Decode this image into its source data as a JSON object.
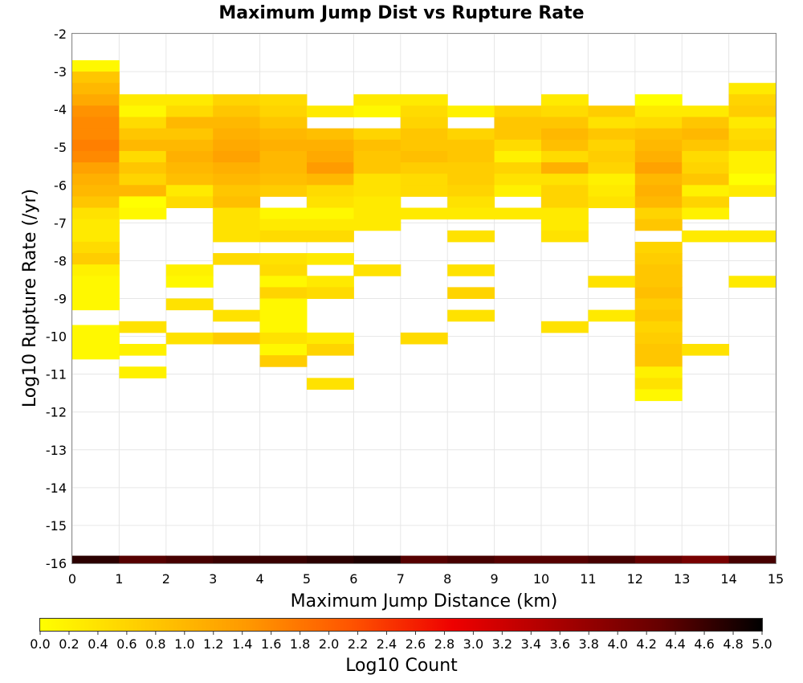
{
  "chart_data": {
    "type": "heatmap",
    "title": "Maximum Jump Dist vs Rupture Rate",
    "xlabel": "Maximum Jump Distance (km)",
    "ylabel": "Log10 Rupture Rate (/yr)",
    "xlim": [
      0,
      15
    ],
    "ylim": [
      -16,
      -2
    ],
    "x_ticks": [
      "0",
      "1",
      "2",
      "3",
      "4",
      "5",
      "6",
      "7",
      "8",
      "9",
      "10",
      "11",
      "12",
      "13",
      "14",
      "15"
    ],
    "y_ticks": [
      "-2",
      "-3",
      "-4",
      "-5",
      "-6",
      "-7",
      "-8",
      "-9",
      "-10",
      "-11",
      "-12",
      "-13",
      "-14",
      "-15",
      "-16"
    ],
    "grid": true,
    "bin_width_x": 1,
    "bin_height_y": 0.3,
    "colorbar": {
      "label": "Log10 Count",
      "min": 0,
      "max": 5,
      "ticks": [
        "0.0",
        "0.2",
        "0.4",
        "0.6",
        "0.8",
        "1.0",
        "1.2",
        "1.4",
        "1.6",
        "1.8",
        "2.0",
        "2.2",
        "2.4",
        "2.6",
        "2.8",
        "3.0",
        "3.2",
        "3.4",
        "3.6",
        "3.8",
        "4.0",
        "4.2",
        "4.4",
        "4.6",
        "4.8",
        "5.0"
      ],
      "colors": [
        "#ffff00",
        "#ffcc00",
        "#ff9900",
        "#ff5500",
        "#ee0000",
        "#aa0000",
        "#660000",
        "#000000"
      ]
    },
    "cells": [
      [
        0,
        -2.85,
        0.1
      ],
      [
        0,
        -3.15,
        0.8
      ],
      [
        0,
        -3.45,
        1.0
      ],
      [
        0,
        -3.75,
        1.2
      ],
      [
        0,
        -4.05,
        1.5
      ],
      [
        0,
        -4.35,
        1.6
      ],
      [
        0,
        -4.65,
        1.6
      ],
      [
        0,
        -4.95,
        1.7
      ],
      [
        0,
        -5.25,
        1.6
      ],
      [
        0,
        -5.55,
        1.3
      ],
      [
        0,
        -5.85,
        1.1
      ],
      [
        0,
        -6.15,
        1.0
      ],
      [
        0,
        -6.45,
        0.8
      ],
      [
        0,
        -6.75,
        0.4
      ],
      [
        0,
        -7.05,
        0.3
      ],
      [
        0,
        -7.35,
        0.3
      ],
      [
        0,
        -7.65,
        0.5
      ],
      [
        0,
        -7.95,
        0.7
      ],
      [
        0,
        -8.25,
        0.2
      ],
      [
        0,
        -8.55,
        0.1
      ],
      [
        0,
        -8.85,
        0.1
      ],
      [
        0,
        -9.15,
        0.1
      ],
      [
        0,
        -9.85,
        0.1
      ],
      [
        0,
        -10.15,
        0.1
      ],
      [
        0,
        -10.45,
        0.1
      ],
      [
        1,
        -3.75,
        0.3
      ],
      [
        1,
        -4.05,
        0.1
      ],
      [
        1,
        -4.35,
        0.5
      ],
      [
        1,
        -4.65,
        0.8
      ],
      [
        1,
        -4.95,
        1.0
      ],
      [
        1,
        -5.25,
        0.5
      ],
      [
        1,
        -5.55,
        0.8
      ],
      [
        1,
        -5.85,
        0.6
      ],
      [
        1,
        -6.15,
        1.0
      ],
      [
        1,
        -6.45,
        0.0
      ],
      [
        1,
        -6.75,
        0.1
      ],
      [
        1,
        -9.75,
        0.4
      ],
      [
        1,
        -10.35,
        0.2
      ],
      [
        1,
        -10.95,
        0.2
      ],
      [
        2,
        -3.75,
        0.3
      ],
      [
        2,
        -4.05,
        0.5
      ],
      [
        2,
        -4.35,
        1.0
      ],
      [
        2,
        -4.65,
        0.8
      ],
      [
        2,
        -4.95,
        1.0
      ],
      [
        2,
        -5.25,
        1.1
      ],
      [
        2,
        -5.55,
        1.0
      ],
      [
        2,
        -5.85,
        0.9
      ],
      [
        2,
        -6.15,
        0.3
      ],
      [
        2,
        -6.45,
        0.5
      ],
      [
        2,
        -8.25,
        0.2
      ],
      [
        2,
        -8.55,
        0.1
      ],
      [
        2,
        -9.15,
        0.4
      ],
      [
        2,
        -10.05,
        0.4
      ],
      [
        3,
        -3.75,
        0.6
      ],
      [
        3,
        -4.05,
        0.8
      ],
      [
        3,
        -4.35,
        1.0
      ],
      [
        3,
        -4.65,
        1.1
      ],
      [
        3,
        -4.95,
        1.2
      ],
      [
        3,
        -5.25,
        1.3
      ],
      [
        3,
        -5.55,
        1.1
      ],
      [
        3,
        -5.85,
        1.0
      ],
      [
        3,
        -6.15,
        0.8
      ],
      [
        3,
        -6.45,
        0.9
      ],
      [
        3,
        -6.75,
        0.4
      ],
      [
        3,
        -7.05,
        0.4
      ],
      [
        3,
        -7.35,
        0.4
      ],
      [
        3,
        -7.95,
        0.5
      ],
      [
        3,
        -9.45,
        0.4
      ],
      [
        3,
        -10.05,
        0.7
      ],
      [
        4,
        -3.75,
        0.5
      ],
      [
        4,
        -4.05,
        0.6
      ],
      [
        4,
        -4.35,
        0.8
      ],
      [
        4,
        -4.65,
        1.0
      ],
      [
        4,
        -4.95,
        1.1
      ],
      [
        4,
        -5.25,
        1.0
      ],
      [
        4,
        -5.55,
        1.0
      ],
      [
        4,
        -5.85,
        0.9
      ],
      [
        4,
        -6.15,
        0.7
      ],
      [
        4,
        -6.75,
        0.1
      ],
      [
        4,
        -7.05,
        0.3
      ],
      [
        4,
        -7.35,
        0.5
      ],
      [
        4,
        -7.95,
        0.4
      ],
      [
        4,
        -8.25,
        0.5
      ],
      [
        4,
        -8.55,
        0.1
      ],
      [
        4,
        -8.85,
        0.6
      ],
      [
        4,
        -9.15,
        0.1
      ],
      [
        4,
        -9.45,
        0.1
      ],
      [
        4,
        -9.75,
        0.1
      ],
      [
        4,
        -10.05,
        0.4
      ],
      [
        4,
        -10.35,
        0.1
      ],
      [
        4,
        -10.65,
        0.7
      ],
      [
        5,
        -4.05,
        0.3
      ],
      [
        5,
        -4.65,
        0.9
      ],
      [
        5,
        -4.95,
        1.1
      ],
      [
        5,
        -5.25,
        1.2
      ],
      [
        5,
        -5.55,
        1.4
      ],
      [
        5,
        -5.85,
        1.0
      ],
      [
        5,
        -6.15,
        0.5
      ],
      [
        5,
        -6.45,
        0.4
      ],
      [
        5,
        -6.75,
        0.1
      ],
      [
        5,
        -7.05,
        0.3
      ],
      [
        5,
        -7.35,
        0.5
      ],
      [
        5,
        -7.95,
        0.3
      ],
      [
        5,
        -8.55,
        0.3
      ],
      [
        5,
        -8.85,
        0.5
      ],
      [
        5,
        -10.05,
        0.3
      ],
      [
        5,
        -10.35,
        0.6
      ],
      [
        5,
        -11.25,
        0.4
      ],
      [
        6,
        -3.75,
        0.3
      ],
      [
        6,
        -4.05,
        0.1
      ],
      [
        6,
        -4.65,
        0.6
      ],
      [
        6,
        -4.95,
        0.9
      ],
      [
        6,
        -5.25,
        0.8
      ],
      [
        6,
        -5.55,
        0.8
      ],
      [
        6,
        -5.85,
        0.4
      ],
      [
        6,
        -6.15,
        0.4
      ],
      [
        6,
        -6.45,
        0.3
      ],
      [
        6,
        -6.75,
        0.3
      ],
      [
        6,
        -7.05,
        0.3
      ],
      [
        6,
        -8.25,
        0.4
      ],
      [
        7,
        -3.75,
        0.3
      ],
      [
        7,
        -4.05,
        0.5
      ],
      [
        7,
        -4.35,
        0.6
      ],
      [
        7,
        -4.65,
        0.8
      ],
      [
        7,
        -4.95,
        0.8
      ],
      [
        7,
        -5.25,
        0.9
      ],
      [
        7,
        -5.55,
        0.7
      ],
      [
        7,
        -5.85,
        0.5
      ],
      [
        7,
        -6.15,
        0.5
      ],
      [
        7,
        -6.75,
        0.3
      ],
      [
        7,
        -10.05,
        0.5
      ],
      [
        8,
        -4.05,
        0.2
      ],
      [
        8,
        -4.65,
        0.6
      ],
      [
        8,
        -4.95,
        0.8
      ],
      [
        8,
        -5.25,
        0.8
      ],
      [
        8,
        -5.55,
        0.7
      ],
      [
        8,
        -5.85,
        0.7
      ],
      [
        8,
        -6.15,
        0.6
      ],
      [
        8,
        -6.45,
        0.4
      ],
      [
        8,
        -6.75,
        0.3
      ],
      [
        8,
        -7.35,
        0.4
      ],
      [
        8,
        -8.25,
        0.4
      ],
      [
        8,
        -8.85,
        0.6
      ],
      [
        8,
        -9.45,
        0.4
      ],
      [
        9,
        -4.05,
        0.6
      ],
      [
        9,
        -4.35,
        0.8
      ],
      [
        9,
        -4.65,
        0.8
      ],
      [
        9,
        -4.95,
        0.5
      ],
      [
        9,
        -5.25,
        0.2
      ],
      [
        9,
        -5.55,
        0.6
      ],
      [
        9,
        -5.85,
        0.4
      ],
      [
        9,
        -6.15,
        0.2
      ],
      [
        9,
        -6.75,
        0.3
      ],
      [
        10,
        -3.75,
        0.3
      ],
      [
        10,
        -4.05,
        0.5
      ],
      [
        10,
        -4.35,
        0.8
      ],
      [
        10,
        -4.65,
        1.0
      ],
      [
        10,
        -4.95,
        0.9
      ],
      [
        10,
        -5.25,
        0.5
      ],
      [
        10,
        -5.55,
        1.1
      ],
      [
        10,
        -5.85,
        0.4
      ],
      [
        10,
        -6.15,
        0.6
      ],
      [
        10,
        -6.45,
        0.6
      ],
      [
        10,
        -6.75,
        0.3
      ],
      [
        10,
        -7.05,
        0.3
      ],
      [
        10,
        -7.35,
        0.4
      ],
      [
        10,
        -9.75,
        0.4
      ],
      [
        11,
        -4.05,
        0.7
      ],
      [
        11,
        -4.35,
        0.4
      ],
      [
        11,
        -4.65,
        0.8
      ],
      [
        11,
        -4.95,
        0.6
      ],
      [
        11,
        -5.25,
        0.7
      ],
      [
        11,
        -5.55,
        0.6
      ],
      [
        11,
        -5.85,
        0.2
      ],
      [
        11,
        -6.15,
        0.3
      ],
      [
        11,
        -6.45,
        0.4
      ],
      [
        11,
        -8.55,
        0.4
      ],
      [
        11,
        -9.45,
        0.3
      ],
      [
        12,
        -3.75,
        0.0
      ],
      [
        12,
        -4.05,
        0.3
      ],
      [
        12,
        -4.35,
        0.5
      ],
      [
        12,
        -4.65,
        0.9
      ],
      [
        12,
        -4.95,
        1.0
      ],
      [
        12,
        -5.25,
        1.1
      ],
      [
        12,
        -5.55,
        1.3
      ],
      [
        12,
        -5.85,
        1.0
      ],
      [
        12,
        -6.15,
        1.1
      ],
      [
        12,
        -6.45,
        1.0
      ],
      [
        12,
        -6.75,
        0.6
      ],
      [
        12,
        -7.05,
        0.8
      ],
      [
        12,
        -7.65,
        0.6
      ],
      [
        12,
        -7.95,
        0.7
      ],
      [
        12,
        -8.25,
        0.8
      ],
      [
        12,
        -8.55,
        0.8
      ],
      [
        12,
        -8.85,
        0.9
      ],
      [
        12,
        -9.15,
        0.7
      ],
      [
        12,
        -9.45,
        0.8
      ],
      [
        12,
        -9.75,
        0.6
      ],
      [
        12,
        -10.05,
        0.7
      ],
      [
        12,
        -10.35,
        0.8
      ],
      [
        12,
        -10.65,
        0.8
      ],
      [
        12,
        -10.95,
        0.2
      ],
      [
        12,
        -11.25,
        0.4
      ],
      [
        12,
        -11.55,
        0.1
      ],
      [
        13,
        -4.05,
        0.3
      ],
      [
        13,
        -4.35,
        0.8
      ],
      [
        13,
        -4.65,
        1.0
      ],
      [
        13,
        -4.95,
        0.8
      ],
      [
        13,
        -5.25,
        0.5
      ],
      [
        13,
        -5.55,
        0.6
      ],
      [
        13,
        -5.85,
        0.8
      ],
      [
        13,
        -6.15,
        0.2
      ],
      [
        13,
        -6.45,
        0.6
      ],
      [
        13,
        -6.75,
        0.2
      ],
      [
        13,
        -7.35,
        0.3
      ],
      [
        13,
        -10.35,
        0.4
      ],
      [
        14,
        -3.45,
        0.3
      ],
      [
        14,
        -3.75,
        0.6
      ],
      [
        14,
        -4.05,
        0.7
      ],
      [
        14,
        -4.35,
        0.3
      ],
      [
        14,
        -4.65,
        0.5
      ],
      [
        14,
        -4.95,
        0.6
      ],
      [
        14,
        -5.25,
        0.2
      ],
      [
        14,
        -5.55,
        0.2
      ],
      [
        14,
        -5.85,
        0.0
      ],
      [
        14,
        -6.15,
        0.3
      ],
      [
        14,
        -7.35,
        0.3
      ],
      [
        14,
        -8.55,
        0.3
      ]
    ],
    "bottom_row": {
      "y": -15.9,
      "values": [
        4.7,
        4.4,
        4.5,
        4.6,
        4.6,
        4.7,
        4.8,
        4.4,
        4.5,
        4.4,
        4.4,
        4.5,
        4.3,
        4.1,
        4.5
      ]
    }
  }
}
